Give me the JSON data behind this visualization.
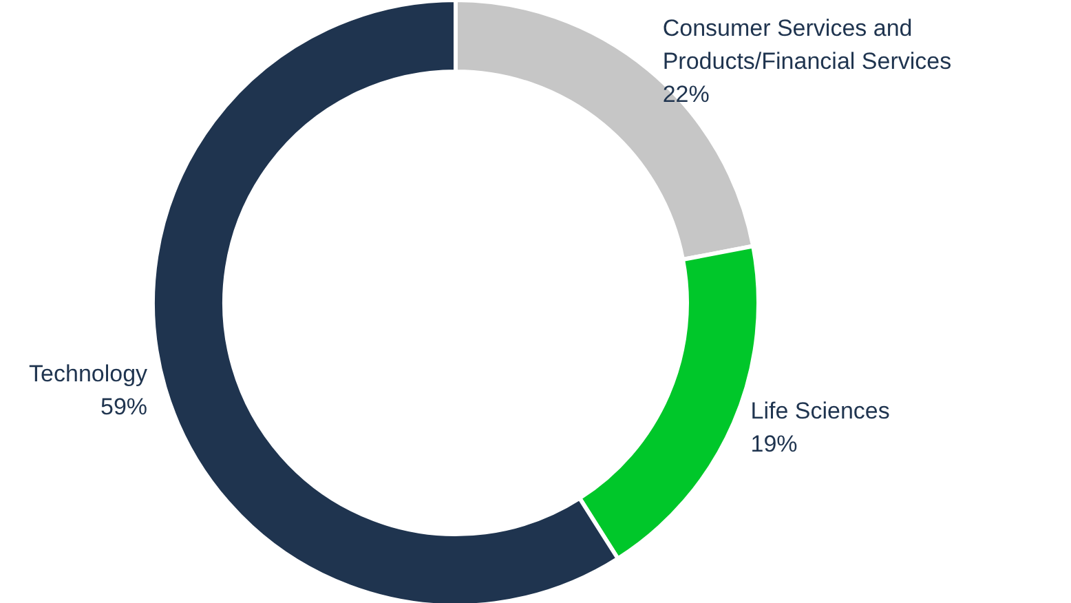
{
  "chart_data": {
    "type": "donut",
    "categories": [
      "Consumer Services and Products/Financial Services",
      "Life Sciences",
      "Technology"
    ],
    "values": [
      22,
      19,
      59
    ],
    "value_labels": [
      "22%",
      "19%",
      "59%"
    ],
    "colors": [
      "#c6c6c6",
      "#00c72a",
      "#1f344f"
    ],
    "legend": false
  }
}
